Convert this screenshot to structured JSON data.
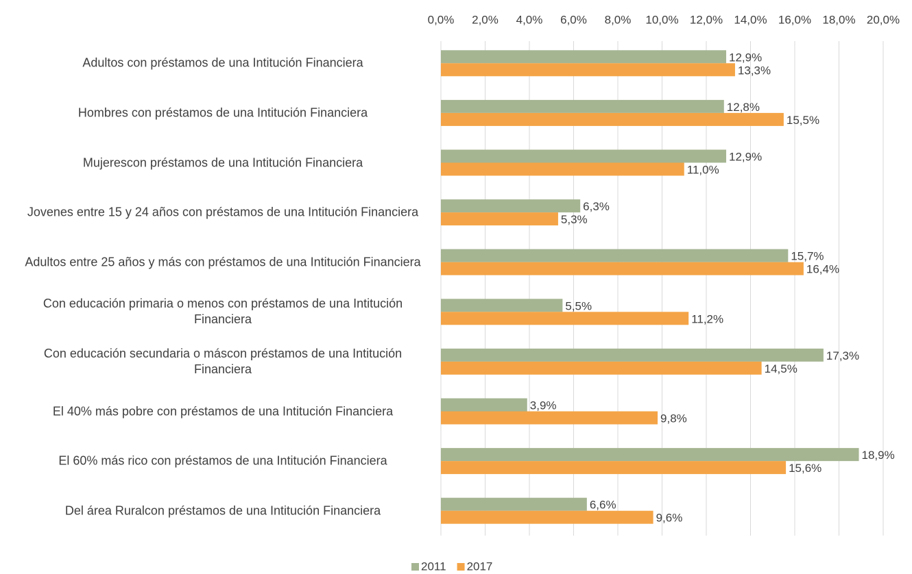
{
  "chart_data": {
    "type": "bar",
    "orientation": "horizontal",
    "categories": [
      "Adultos con préstamos de una Intitución Financiera",
      "Hombres con préstamos de una Intitución Financiera",
      "Mujerescon préstamos de una Intitución Financiera",
      "Jovenes entre 15 y 24 años con préstamos de una Intitución Financiera",
      "Adultos entre 25 años y más con préstamos de una Intitución Financiera",
      "Con educación primaria o menos con préstamos de una Intitución Financiera",
      "Con educación secundaria o máscon préstamos de una Intitución Financiera",
      "El 40% más pobre con préstamos de una Intitución Financiera",
      "El 60% más rico con préstamos de una Intitución Financiera",
      "Del área Ruralcon préstamos de una Intitución Financiera"
    ],
    "series": [
      {
        "name": "2011",
        "color": "#a5b592",
        "values": [
          12.9,
          12.8,
          12.9,
          6.3,
          15.7,
          5.5,
          17.3,
          3.9,
          18.9,
          6.6
        ],
        "value_labels": [
          "12,9%",
          "12,8%",
          "12,9%",
          "6,3%",
          "15,7%",
          "5,5%",
          "17,3%",
          "3,9%",
          "18,9%",
          "6,6%"
        ]
      },
      {
        "name": "2017",
        "color": "#f4a446",
        "values": [
          13.3,
          15.5,
          11.0,
          5.3,
          16.4,
          11.2,
          14.5,
          9.8,
          15.6,
          9.6
        ],
        "value_labels": [
          "13,3%",
          "15,5%",
          "11,0%",
          "5,3%",
          "16,4%",
          "11,2%",
          "14,5%",
          "9,8%",
          "15,6%",
          "9,6%"
        ]
      }
    ],
    "xlim": [
      0,
      20
    ],
    "xticks": [
      {
        "value": 0,
        "label": "0,0%"
      },
      {
        "value": 2,
        "label": "2,0%"
      },
      {
        "value": 4,
        "label": "4,0%"
      },
      {
        "value": 6,
        "label": "6,0%"
      },
      {
        "value": 8,
        "label": "8,0%"
      },
      {
        "value": 10,
        "label": "10,0%"
      },
      {
        "value": 12,
        "label": "12,0%"
      },
      {
        "value": 14,
        "label": "14,0%"
      },
      {
        "value": 16,
        "label": "16,0%"
      },
      {
        "value": 18,
        "label": "18,0%"
      },
      {
        "value": 20,
        "label": "20,0%"
      }
    ],
    "grid": true,
    "legend": "bottom"
  }
}
